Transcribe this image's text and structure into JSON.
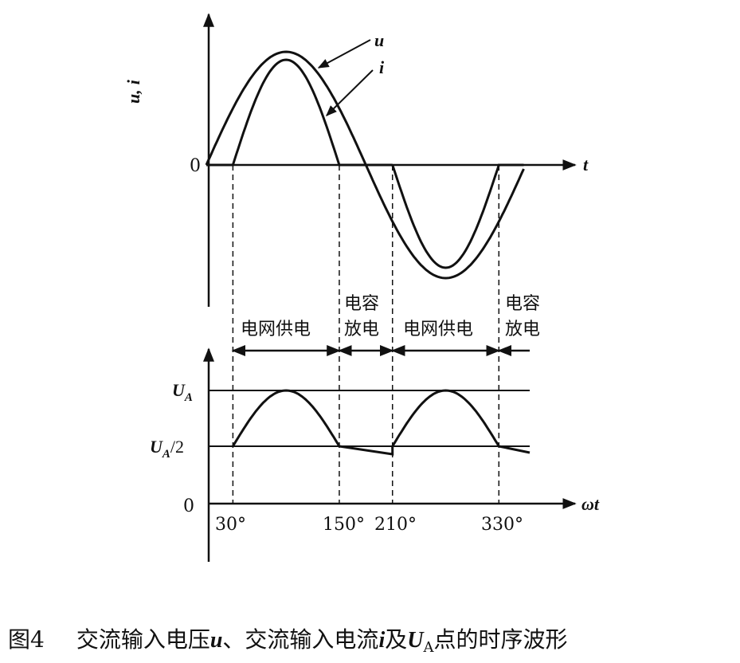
{
  "top_plot": {
    "axis_label": [
      "u",
      "i"
    ],
    "axis_separator": ",",
    "origin": "0",
    "x_axis": "t",
    "curve_labels": {
      "u": "u",
      "i": "i"
    }
  },
  "intervals": [
    {
      "lines": [
        "电网供电"
      ]
    },
    {
      "lines": [
        "电容",
        "放电"
      ]
    },
    {
      "lines": [
        "电网供电"
      ]
    },
    {
      "lines": [
        "电容",
        "放电"
      ]
    }
  ],
  "bottom_plot": {
    "levels": [
      {
        "main": "U",
        "sub": "A",
        "suffix": ""
      },
      {
        "main": "U",
        "sub": "A",
        "suffix": "/2"
      }
    ],
    "origin": "0",
    "x_axis": {
      "symbol": "ω",
      "var": "t"
    },
    "angles": [
      "30°",
      "150°",
      "210°",
      "330°"
    ]
  },
  "caption": {
    "number": "图4",
    "parts": [
      "交流输入电压",
      "u",
      "、交流输入电流",
      "i",
      "及",
      "U",
      "A",
      "点的时序波形"
    ]
  }
}
